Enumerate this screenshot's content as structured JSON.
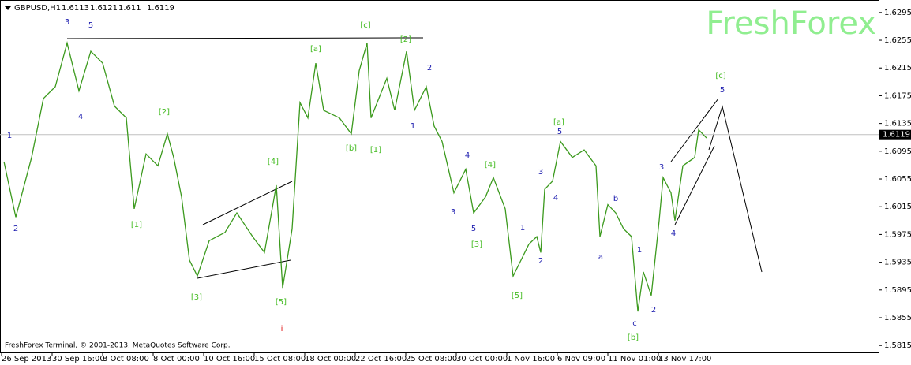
{
  "header": {
    "symbol": "GBPUSD,H1",
    "ohlc": [
      1.6113,
      1.6121,
      1.611,
      1.6119
    ]
  },
  "watermark": "FreshForex",
  "footer": "FreshForex Terminal, © 2001-2013, MetaQuotes Software Corp.",
  "chart_data": {
    "type": "line",
    "x": [
      2.5,
      10,
      20,
      27.5,
      35,
      42.5,
      50,
      57.5,
      65,
      72.5,
      80,
      85,
      92.5,
      100,
      106,
      110,
      115,
      120,
      125,
      132.5,
      142.5,
      150,
      160,
      167.5,
      175,
      179,
      185,
      190,
      195,
      200,
      205,
      215,
      222.5,
      227.5,
      232.5,
      235,
      245,
      250,
      257.5,
      262.5,
      270,
      275,
      280,
      287.5,
      295,
      300,
      307.5,
      312.5,
      320,
      325,
      330,
      335,
      340,
      342.5,
      345,
      350,
      355,
      362.5,
      370,
      377.5,
      380,
      385,
      390,
      395,
      400,
      404,
      407.5,
      412.5,
      417.5,
      420,
      425,
      427.5,
      432.5,
      440,
      442.5,
      447.5
    ],
    "series": [
      {
        "color": "#3c9a1e",
        "values": [
          1.608,
          1.6,
          1.6086,
          1.6171,
          1.6188,
          1.6251,
          1.6182,
          1.6239,
          1.6222,
          1.616,
          1.6143,
          1.6012,
          1.6091,
          1.6074,
          1.612,
          1.6086,
          1.6029,
          1.5938,
          1.5915,
          1.5966,
          1.5978,
          1.6006,
          1.5972,
          1.5949,
          1.6046,
          1.5898,
          1.5983,
          1.6165,
          1.6143,
          1.6222,
          1.6154,
          1.6143,
          1.612,
          1.6211,
          1.6251,
          1.6143,
          1.62,
          1.6154,
          1.6239,
          1.6154,
          1.6188,
          1.6131,
          1.6109,
          1.6035,
          1.6069,
          1.6006,
          1.6029,
          1.6057,
          1.6012,
          1.5915,
          1.5938,
          1.5961,
          1.5972,
          1.5949,
          1.604,
          1.6052,
          1.6109,
          1.6086,
          1.6097,
          1.6074,
          1.5972,
          1.6018,
          1.6006,
          1.5983,
          1.5972,
          1.5864,
          1.5921,
          1.5887,
          1.5995,
          1.6057,
          1.6035,
          1.5995,
          1.6074,
          1.6086,
          1.6126,
          1.6114
        ]
      }
    ],
    "xlim": [
      0,
      556.5
    ],
    "xticks": [
      {
        "value": 1,
        "label": "26 Sep 2013"
      },
      {
        "value": 33,
        "label": "30 Sep 16:00"
      },
      {
        "value": 65,
        "label": "3 Oct 08:00"
      },
      {
        "value": 97,
        "label": "8 Oct 00:00"
      },
      {
        "value": 129,
        "label": "10 Oct 16:00"
      },
      {
        "value": 161,
        "label": "15 Oct 08:00"
      },
      {
        "value": 193,
        "label": "18 Oct 00:00"
      },
      {
        "value": 225,
        "label": "22 Oct 16:00"
      },
      {
        "value": 257,
        "label": "25 Oct 08:00"
      },
      {
        "value": 289,
        "label": "30 Oct 00:00"
      },
      {
        "value": 321,
        "label": "1 Nov 16:00"
      },
      {
        "value": 353,
        "label": "6 Nov 09:00"
      },
      {
        "value": 385,
        "label": "11 Nov 01:00"
      },
      {
        "value": 417,
        "label": "13 Nov 17:00"
      }
    ],
    "ylim": [
      1.5805,
      1.6313
    ],
    "yticks": [
      1.6295,
      1.6255,
      1.6215,
      1.6175,
      1.6135,
      1.6095,
      1.6055,
      1.6015,
      1.5975,
      1.5935,
      1.5895,
      1.5855,
      1.5815
    ],
    "current_price": 1.6119,
    "annotations": [
      {
        "text": "3",
        "color": "#2020b0"
      },
      {
        "text": "5",
        "color": "#2020b0"
      },
      {
        "text": "4",
        "color": "#2020b0"
      },
      {
        "text": "1",
        "color": "#2020b0"
      },
      {
        "text": "2",
        "color": "#2020b0"
      },
      {
        "text": "1",
        "color": "#2020b0"
      },
      {
        "text": "2",
        "color": "#2020b0"
      },
      {
        "text": "4",
        "color": "#2020b0"
      },
      {
        "text": "3",
        "color": "#2020b0"
      },
      {
        "text": "5",
        "color": "#2020b0"
      },
      {
        "text": "1",
        "color": "#2020b0"
      },
      {
        "text": "2",
        "color": "#2020b0"
      },
      {
        "text": "3",
        "color": "#2020b0"
      },
      {
        "text": "4",
        "color": "#2020b0"
      },
      {
        "text": "5",
        "color": "#2020b0"
      },
      {
        "text": "b",
        "color": "#2020b0"
      },
      {
        "text": "a",
        "color": "#2020b0"
      },
      {
        "text": "1",
        "color": "#2020b0"
      },
      {
        "text": "2",
        "color": "#2020b0"
      },
      {
        "text": "c",
        "color": "#2020b0"
      },
      {
        "text": "3",
        "color": "#2020b0"
      },
      {
        "text": "4",
        "color": "#2020b0"
      },
      {
        "text": "5",
        "color": "#2020b0"
      },
      {
        "text": "[c]",
        "color": "#44bb22"
      },
      {
        "text": "[2]",
        "color": "#44bb22"
      },
      {
        "text": "[a]",
        "color": "#44bb22"
      },
      {
        "text": "[2]",
        "color": "#44bb22"
      },
      {
        "text": "[1]",
        "color": "#44bb22"
      },
      {
        "text": "[3]",
        "color": "#44bb22"
      },
      {
        "text": "[4]",
        "color": "#44bb22"
      },
      {
        "text": "[5]",
        "color": "#44bb22"
      },
      {
        "text": "[b]",
        "color": "#44bb22"
      },
      {
        "text": "[1]",
        "color": "#44bb22"
      },
      {
        "text": "[4]",
        "color": "#44bb22"
      },
      {
        "text": "[3]",
        "color": "#44bb22"
      },
      {
        "text": "[5]",
        "color": "#44bb22"
      },
      {
        "text": "[a]",
        "color": "#44bb22"
      },
      {
        "text": "[b]",
        "color": "#44bb22"
      },
      {
        "text": "[c]",
        "color": "#44bb22"
      },
      {
        "text": "i",
        "color": "#e01010"
      }
    ]
  }
}
